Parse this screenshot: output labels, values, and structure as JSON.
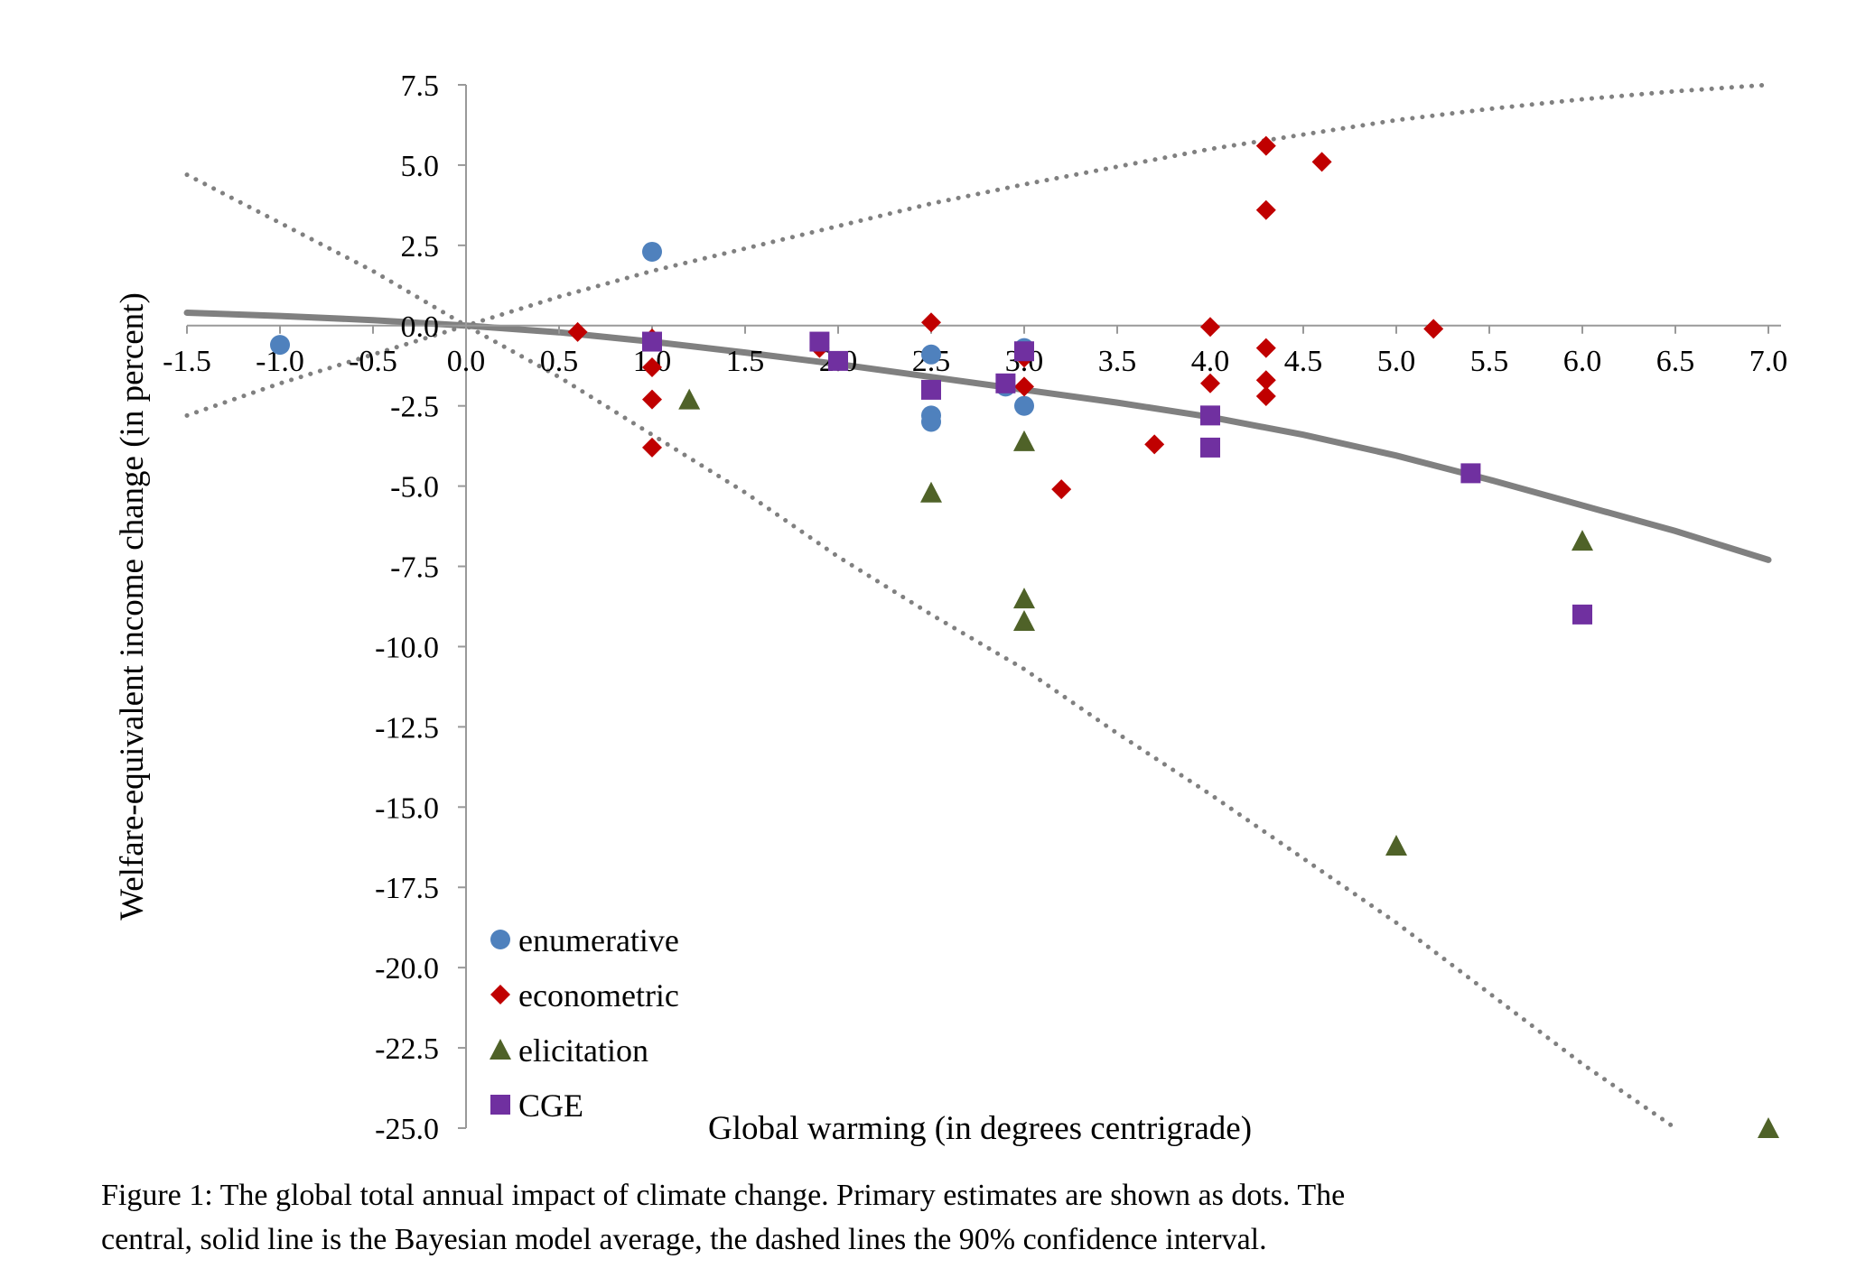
{
  "chart_data": {
    "type": "scatter",
    "xlabel": "Global warming (in degrees centrigrade)",
    "ylabel": "Welfare-equivalent income change (in percent)",
    "xlim": [
      -1.5,
      7.0
    ],
    "ylim": [
      -25.0,
      7.5
    ],
    "x_ticks": [
      "-1.5",
      "-1.0",
      "-0.5",
      "0.0",
      "0.5",
      "1.0",
      "1.5",
      "2.0",
      "2.5",
      "3.0",
      "3.5",
      "4.0",
      "4.5",
      "5.0",
      "5.5",
      "6.0",
      "6.5",
      "7.0"
    ],
    "y_ticks": [
      "7.5",
      "5.0",
      "2.5",
      "0.0",
      "-2.5",
      "-5.0",
      "-7.5",
      "-10.0",
      "-12.5",
      "-15.0",
      "-17.5",
      "-20.0",
      "-22.5",
      "-25.0"
    ],
    "x_tick_values": [
      -1.5,
      -1.0,
      -0.5,
      0.0,
      0.5,
      1.0,
      1.5,
      2.0,
      2.5,
      3.0,
      3.5,
      4.0,
      4.5,
      5.0,
      5.5,
      6.0,
      6.5,
      7.0
    ],
    "y_tick_values": [
      7.5,
      5.0,
      2.5,
      0.0,
      -2.5,
      -5.0,
      -7.5,
      -10.0,
      -12.5,
      -15.0,
      -17.5,
      -20.0,
      -22.5,
      -25.0
    ],
    "grid": false,
    "legend_position": "bottom-left",
    "series": [
      {
        "name": "enumerative",
        "marker": "circle",
        "color": "#4f81bd",
        "points": [
          [
            -1.0,
            -0.6
          ],
          [
            1.0,
            2.3
          ],
          [
            2.5,
            -0.9
          ],
          [
            2.5,
            -2.8
          ],
          [
            2.5,
            -3.0
          ],
          [
            2.9,
            -1.9
          ],
          [
            3.0,
            -0.7
          ],
          [
            3.0,
            -2.5
          ]
        ]
      },
      {
        "name": "econometric",
        "marker": "diamond",
        "color": "#c00000",
        "points": [
          [
            0.6,
            -0.2
          ],
          [
            1.0,
            -0.4
          ],
          [
            1.0,
            -1.3
          ],
          [
            1.0,
            -2.3
          ],
          [
            1.0,
            -3.8
          ],
          [
            1.9,
            -0.7
          ],
          [
            2.0,
            -1.1
          ],
          [
            2.5,
            0.1
          ],
          [
            3.0,
            -1.0
          ],
          [
            3.0,
            -1.9
          ],
          [
            3.2,
            -5.1
          ],
          [
            3.7,
            -3.7
          ],
          [
            4.0,
            -0.04
          ],
          [
            4.0,
            -1.8
          ],
          [
            4.3,
            5.6
          ],
          [
            4.3,
            3.6
          ],
          [
            4.3,
            -0.7
          ],
          [
            4.3,
            -1.7
          ],
          [
            4.3,
            -2.2
          ],
          [
            4.6,
            5.1
          ],
          [
            5.2,
            -0.1
          ]
        ]
      },
      {
        "name": "elicitation",
        "marker": "triangle",
        "color": "#4f6228",
        "points": [
          [
            1.2,
            -2.3
          ],
          [
            2.5,
            -5.2
          ],
          [
            3.0,
            -3.6
          ],
          [
            3.0,
            -8.5
          ],
          [
            3.0,
            -9.2
          ],
          [
            5.0,
            -16.2
          ],
          [
            6.0,
            -6.7
          ],
          [
            7.0,
            -25.0
          ]
        ]
      },
      {
        "name": "CGE",
        "marker": "square",
        "color": "#7030a0",
        "points": [
          [
            1.0,
            -0.5
          ],
          [
            1.9,
            -0.5
          ],
          [
            2.0,
            -1.1
          ],
          [
            2.5,
            -2.0
          ],
          [
            2.9,
            -1.8
          ],
          [
            3.0,
            -0.8
          ],
          [
            4.0,
            -2.8
          ],
          [
            4.0,
            -3.8
          ],
          [
            5.4,
            -4.6
          ],
          [
            6.0,
            -9.0
          ]
        ]
      }
    ],
    "curves": [
      {
        "role": "bayesian-model-average",
        "style": "solid",
        "color": "#808080",
        "points": [
          [
            -1.5,
            0.4
          ],
          [
            -1.0,
            0.3
          ],
          [
            -0.5,
            0.17
          ],
          [
            0.0,
            0.0
          ],
          [
            0.5,
            -0.21
          ],
          [
            1.0,
            -0.5
          ],
          [
            1.5,
            -0.84
          ],
          [
            2.0,
            -1.2
          ],
          [
            2.5,
            -1.6
          ],
          [
            3.0,
            -2.0
          ],
          [
            3.5,
            -2.4
          ],
          [
            4.0,
            -2.85
          ],
          [
            4.5,
            -3.4
          ],
          [
            5.0,
            -4.05
          ],
          [
            5.5,
            -4.8
          ],
          [
            6.0,
            -5.6
          ],
          [
            6.5,
            -6.4
          ],
          [
            7.0,
            -7.3
          ]
        ]
      },
      {
        "role": "confidence-upper",
        "style": "dotted",
        "color": "#808080",
        "points": [
          [
            -1.5,
            -2.8
          ],
          [
            -1.0,
            -1.8
          ],
          [
            -0.5,
            -0.9
          ],
          [
            0.0,
            0.0
          ],
          [
            0.5,
            0.9
          ],
          [
            1.0,
            1.7
          ],
          [
            1.5,
            2.4
          ],
          [
            2.0,
            3.1
          ],
          [
            2.5,
            3.8
          ],
          [
            3.0,
            4.4
          ],
          [
            3.5,
            4.95
          ],
          [
            4.0,
            5.5
          ],
          [
            4.5,
            5.95
          ],
          [
            5.0,
            6.4
          ],
          [
            5.5,
            6.75
          ],
          [
            6.0,
            7.05
          ],
          [
            6.5,
            7.3
          ],
          [
            7.0,
            7.5
          ]
        ]
      },
      {
        "role": "confidence-lower",
        "style": "dotted",
        "color": "#808080",
        "points": [
          [
            -1.5,
            4.7
          ],
          [
            -1.0,
            3.2
          ],
          [
            -0.5,
            1.7
          ],
          [
            0.0,
            0.0
          ],
          [
            0.5,
            -1.6
          ],
          [
            1.0,
            -3.4
          ],
          [
            1.5,
            -5.2
          ],
          [
            2.0,
            -7.2
          ],
          [
            2.5,
            -9.0
          ],
          [
            3.0,
            -10.7
          ],
          [
            3.5,
            -12.7
          ],
          [
            4.0,
            -14.6
          ],
          [
            4.5,
            -16.6
          ],
          [
            5.0,
            -18.6
          ],
          [
            5.5,
            -20.8
          ],
          [
            6.0,
            -23.0
          ],
          [
            6.5,
            -25.0
          ]
        ]
      }
    ]
  },
  "caption": {
    "line1": "Figure 1:  The global total annual impact of climate change.  Primary estimates are shown as dots.  The",
    "line2": "central, solid line is the Bayesian model average, the dashed lines the 90% confidence interval."
  }
}
